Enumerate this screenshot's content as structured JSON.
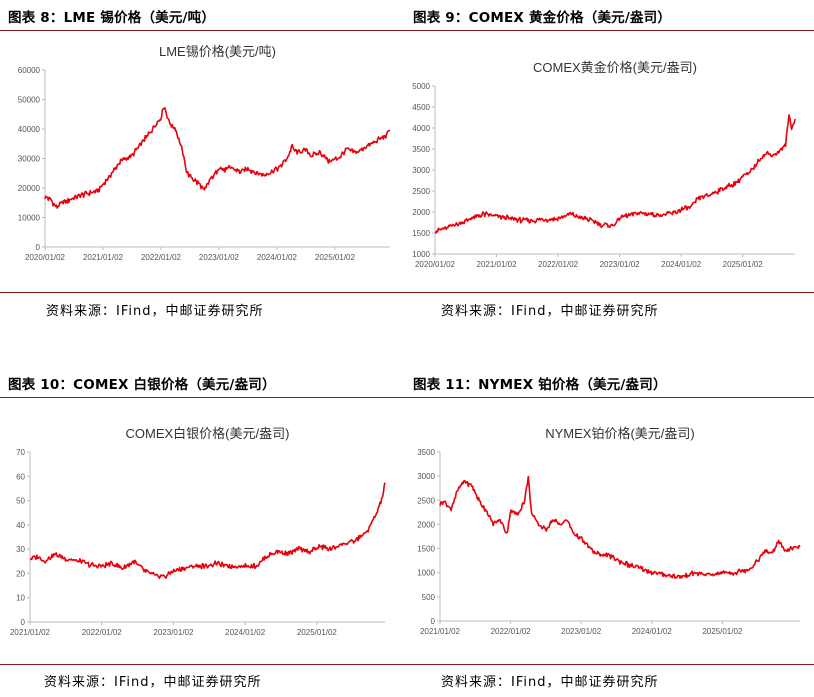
{
  "colors": {
    "line": "#e8000b",
    "accent": "#8b1a1a",
    "axis": "#bbbbbb"
  },
  "source_label": "资料来源：IFind，中邮证券研究所",
  "chart_data": [
    {
      "type": "line",
      "figure_label": "图表 8：LME 锡价格（美元/吨）",
      "title": "LME锡价格(美元/吨)",
      "ylim": [
        0,
        60000
      ],
      "yticks": [
        "0",
        "10000",
        "20000",
        "30000",
        "40000",
        "50000",
        "60000"
      ],
      "xticks": [
        "2020/01/02",
        "2021/01/02",
        "2022/01/02",
        "2023/01/02",
        "2024/01/02",
        "2025/01/02"
      ],
      "xlim": [
        0,
        5.95
      ],
      "x": [
        0,
        0.1,
        0.2,
        0.35,
        0.5,
        0.7,
        0.9,
        1.0,
        1.15,
        1.3,
        1.5,
        1.7,
        1.85,
        2.0,
        2.05,
        2.15,
        2.25,
        2.35,
        2.45,
        2.55,
        2.65,
        2.75,
        2.85,
        2.95,
        3.0,
        3.1,
        3.2,
        3.35,
        3.5,
        3.65,
        3.8,
        3.95,
        4.05,
        4.2,
        4.25,
        4.35,
        4.5,
        4.6,
        4.75,
        4.9,
        5.05,
        5.2,
        5.35,
        5.5,
        5.65,
        5.8,
        5.9,
        5.95
      ],
      "y": [
        17000,
        16000,
        13500,
        15500,
        16500,
        18000,
        19000,
        21000,
        25000,
        29000,
        31000,
        36000,
        40000,
        44000,
        48000,
        42000,
        40000,
        34000,
        25000,
        23000,
        21500,
        19000,
        23000,
        25000,
        27000,
        26000,
        27000,
        25500,
        26500,
        25000,
        24500,
        26000,
        27000,
        31000,
        34000,
        32000,
        33000,
        31000,
        32000,
        29000,
        30000,
        33000,
        32000,
        33500,
        35000,
        37000,
        38000,
        40000
      ]
    },
    {
      "type": "line",
      "figure_label": "图表 9：COMEX 黄金价格（美元/盎司）",
      "title": "COMEX黄金价格(美元/盎司)",
      "ylim": [
        1000,
        5000
      ],
      "yticks": [
        "1000",
        "1500",
        "2000",
        "2500",
        "3000",
        "3500",
        "4000",
        "4500",
        "5000"
      ],
      "xticks": [
        "2020/01/02",
        "2021/01/02",
        "2022/01/02",
        "2023/01/02",
        "2024/01/02",
        "2025/01/02"
      ],
      "xlim": [
        0,
        5.85
      ],
      "x": [
        0,
        0.1,
        0.2,
        0.3,
        0.45,
        0.6,
        0.8,
        1.0,
        1.2,
        1.4,
        1.6,
        1.8,
        2.0,
        2.2,
        2.35,
        2.5,
        2.7,
        2.9,
        3.0,
        3.15,
        3.3,
        3.5,
        3.7,
        3.9,
        4.0,
        4.15,
        4.3,
        4.45,
        4.6,
        4.75,
        4.9,
        5.0,
        5.1,
        5.2,
        5.3,
        5.4,
        5.5,
        5.6,
        5.7,
        5.75,
        5.8,
        5.85
      ],
      "y": [
        1550,
        1580,
        1620,
        1700,
        1750,
        1850,
        1950,
        1900,
        1850,
        1800,
        1800,
        1820,
        1840,
        1950,
        1870,
        1820,
        1700,
        1680,
        1850,
        1930,
        1980,
        1950,
        1920,
        1990,
        2060,
        2100,
        2350,
        2400,
        2500,
        2600,
        2700,
        2850,
        2900,
        3100,
        3300,
        3400,
        3350,
        3450,
        3600,
        4300,
        4000,
        4200
      ]
    },
    {
      "type": "line",
      "figure_label": "图表 10：COMEX 白银价格（美元/盎司）",
      "title": "COMEX白银价格(美元/盎司)",
      "ylim": [
        0,
        70
      ],
      "yticks": [
        "0",
        "10",
        "20",
        "30",
        "40",
        "50",
        "60",
        "70"
      ],
      "xticks": [
        "2021/01/02",
        "2022/01/02",
        "2023/01/02",
        "2024/01/02",
        "2025/01/02"
      ],
      "xlim": [
        0,
        4.95
      ],
      "x": [
        0,
        0.1,
        0.2,
        0.35,
        0.5,
        0.7,
        0.9,
        1.0,
        1.15,
        1.3,
        1.45,
        1.6,
        1.75,
        1.9,
        2.0,
        2.15,
        2.3,
        2.45,
        2.6,
        2.75,
        2.9,
        3.0,
        3.15,
        3.3,
        3.45,
        3.6,
        3.75,
        3.9,
        4.05,
        4.2,
        4.35,
        4.5,
        4.6,
        4.7,
        4.8,
        4.85,
        4.9,
        4.95
      ],
      "y": [
        26,
        27,
        25,
        28,
        26,
        25,
        23,
        23,
        24,
        22,
        25,
        21,
        19,
        19,
        21,
        22,
        23,
        23,
        24,
        23,
        23,
        23,
        23,
        27,
        29,
        28,
        30,
        29,
        31,
        30,
        32,
        33,
        35,
        37,
        43,
        46,
        50,
        57
      ]
    },
    {
      "type": "line",
      "figure_label": "图表 11：NYMEX 铂价格（美元/盎司）",
      "title": "NYMEX铂价格(美元/盎司)",
      "ylim": [
        0,
        3500
      ],
      "yticks": [
        "0",
        "500",
        "1000",
        "1500",
        "2000",
        "2500",
        "3000",
        "3500"
      ],
      "xticks": [
        "2021/01/02",
        "2022/01/02",
        "2023/01/02",
        "2024/01/02",
        "2025/01/02"
      ],
      "xlim": [
        0,
        5.1
      ],
      "x": [
        0,
        0.05,
        0.15,
        0.25,
        0.35,
        0.45,
        0.55,
        0.65,
        0.75,
        0.85,
        0.95,
        1.0,
        1.1,
        1.2,
        1.25,
        1.3,
        1.4,
        1.5,
        1.6,
        1.7,
        1.8,
        1.9,
        2.0,
        2.2,
        2.4,
        2.6,
        2.8,
        3.0,
        3.2,
        3.4,
        3.6,
        3.8,
        4.0,
        4.2,
        4.4,
        4.5,
        4.6,
        4.7,
        4.8,
        4.9,
        5.0,
        5.1
      ],
      "y": [
        2400,
        2500,
        2300,
        2700,
        2900,
        2800,
        2500,
        2300,
        2000,
        2100,
        1800,
        2300,
        2200,
        2500,
        3000,
        2200,
        2000,
        1900,
        2100,
        2000,
        2100,
        1800,
        1700,
        1400,
        1350,
        1200,
        1100,
        1000,
        950,
        900,
        1000,
        950,
        1000,
        1000,
        1100,
        1250,
        1450,
        1400,
        1650,
        1450,
        1500,
        1550
      ]
    }
  ]
}
